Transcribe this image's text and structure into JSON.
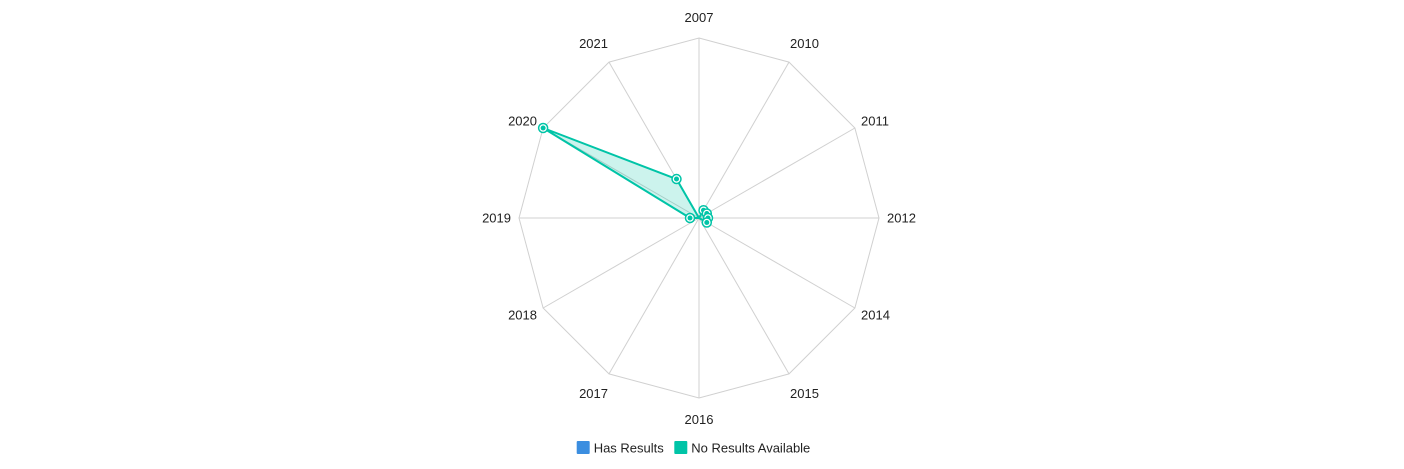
{
  "chart_data": {
    "type": "radar",
    "categories": [
      "2007",
      "2010",
      "2011",
      "2012",
      "2014",
      "2015",
      "2016",
      "2017",
      "2018",
      "2019",
      "2020",
      "2021"
    ],
    "series": [
      {
        "name": "Has Results",
        "color": "#3b8ee0",
        "values": [
          0,
          0,
          0,
          0,
          0,
          0,
          0,
          0,
          0,
          0,
          0,
          0
        ]
      },
      {
        "name": "No Results Available",
        "color": "#00c4a7",
        "values": [
          0,
          1,
          1,
          1,
          1,
          0,
          0,
          0,
          0,
          1,
          20,
          5
        ]
      }
    ],
    "rlim": [
      0,
      20
    ],
    "grid": true,
    "legend_position": "bottom"
  }
}
